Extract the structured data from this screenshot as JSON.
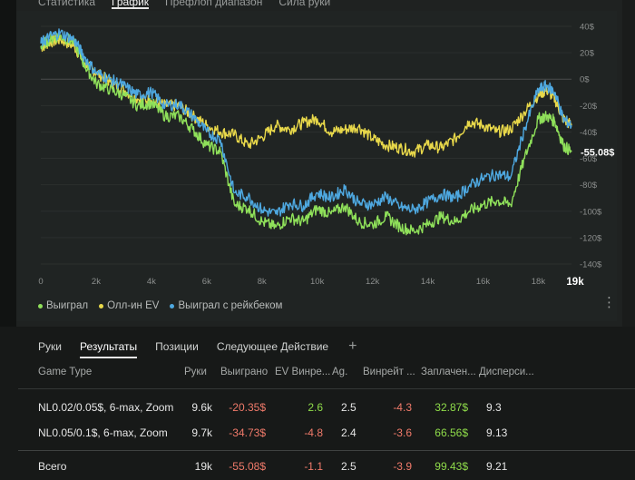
{
  "top_tabs": [
    {
      "label": "Статистика",
      "active": false
    },
    {
      "label": "График",
      "active": true
    },
    {
      "label": "Префлоп диапазон",
      "active": false
    },
    {
      "label": "Сила руки",
      "active": false
    }
  ],
  "chart_data": {
    "type": "line",
    "x_ticks": [
      "0",
      "2k",
      "4k",
      "6k",
      "8k",
      "10k",
      "12k",
      "14k",
      "16k",
      "18k"
    ],
    "x_max_label": "19k",
    "y_ticks": [
      "40$",
      "20$",
      "0$",
      "-20$",
      "-40$",
      "-60$",
      "-80$",
      "-100$",
      "-120$",
      "-140$"
    ],
    "ylim": [
      -140,
      40
    ],
    "xlim": [
      0,
      19200
    ],
    "current_value_label": "-55.08$",
    "series": [
      {
        "name": "Выиграл",
        "color": "#8fe05a",
        "x": [
          0,
          300,
          700,
          1200,
          1600,
          2000,
          2500,
          3000,
          3500,
          4000,
          4500,
          5000,
          5500,
          6000,
          6500,
          7000,
          7500,
          8000,
          8500,
          9000,
          9500,
          10000,
          10500,
          11000,
          11500,
          12000,
          12500,
          13000,
          13500,
          14000,
          14500,
          15000,
          15500,
          16000,
          16500,
          17000,
          17500,
          18000,
          18300,
          18600,
          18900,
          19200
        ],
        "y": [
          25,
          30,
          33,
          28,
          10,
          -3,
          -8,
          -12,
          -20,
          -18,
          -28,
          -28,
          -38,
          -50,
          -55,
          -95,
          -98,
          -108,
          -112,
          -105,
          -108,
          -98,
          -102,
          -96,
          -108,
          -110,
          -104,
          -112,
          -115,
          -110,
          -104,
          -108,
          -100,
          -95,
          -92,
          -95,
          -60,
          -30,
          -28,
          -32,
          -50,
          -55.08
        ]
      },
      {
        "name": "Олл-ин EV",
        "color": "#e8d84a",
        "x": [
          0,
          300,
          700,
          1200,
          1600,
          2000,
          2500,
          3000,
          3500,
          4000,
          4500,
          5000,
          5500,
          6000,
          6500,
          7000,
          7500,
          8000,
          8500,
          9000,
          9500,
          10000,
          10500,
          11000,
          11500,
          12000,
          12500,
          13000,
          13500,
          14000,
          14500,
          15000,
          15500,
          16000,
          16500,
          17000,
          17500,
          18000,
          18300,
          18600,
          18900,
          19200
        ],
        "y": [
          24,
          28,
          30,
          25,
          12,
          5,
          -2,
          -8,
          -15,
          -16,
          -20,
          -20,
          -28,
          -35,
          -40,
          -42,
          -50,
          -44,
          -35,
          -38,
          -33,
          -30,
          -40,
          -38,
          -36,
          -45,
          -50,
          -52,
          -55,
          -50,
          -52,
          -45,
          -32,
          -35,
          -40,
          -38,
          -25,
          -12,
          -8,
          -15,
          -30,
          -35
        ]
      },
      {
        "name": "Выиграл с рейкбеком",
        "color": "#4ea8e0",
        "x": [
          0,
          300,
          700,
          1200,
          1600,
          2000,
          2500,
          3000,
          3500,
          4000,
          4500,
          5000,
          5500,
          6000,
          6500,
          7000,
          7500,
          8000,
          8500,
          9000,
          9500,
          10000,
          10500,
          11000,
          11500,
          12000,
          12500,
          13000,
          13500,
          14000,
          14500,
          15000,
          15500,
          16000,
          16500,
          17000,
          17500,
          18000,
          18300,
          18600,
          18900,
          19200
        ],
        "y": [
          27,
          32,
          35,
          30,
          16,
          5,
          0,
          -5,
          -12,
          -10,
          -20,
          -19,
          -28,
          -40,
          -46,
          -86,
          -89,
          -99,
          -102,
          -94,
          -96,
          -86,
          -90,
          -83,
          -94,
          -95,
          -89,
          -97,
          -99,
          -93,
          -87,
          -90,
          -81,
          -75,
          -72,
          -74,
          -38,
          -8,
          -5,
          -10,
          -30,
          -35
        ]
      }
    ]
  },
  "legend": [
    {
      "label": "Выиграл",
      "color": "#8fe05a"
    },
    {
      "label": "Олл-ин EV",
      "color": "#e8d84a"
    },
    {
      "label": "Выиграл с рейкбеком",
      "color": "#4ea8e0"
    }
  ],
  "sub_tabs": [
    {
      "label": "Руки",
      "active": false
    },
    {
      "label": "Результаты",
      "active": true
    },
    {
      "label": "Позиции",
      "active": false
    },
    {
      "label": "Следующее Действие",
      "active": false
    }
  ],
  "add_tab_label": "+",
  "kebab_label": "⋮",
  "table": {
    "headers": [
      "Game Type",
      "Руки",
      "Выиграно",
      "EV Винре...",
      "Ag.",
      "Винрейт ...",
      "Заплачен...",
      "Дисперси..."
    ],
    "rows": [
      [
        "NL0.02/0.05$, 6-max, Zoom",
        "9.6k",
        "-20.35$",
        "2.6",
        "2.5",
        "-4.3",
        "32.87$",
        "9.3"
      ],
      [
        "NL0.05/0.1$, 6-max, Zoom",
        "9.7k",
        "-34.73$",
        "-4.8",
        "2.4",
        "-3.6",
        "66.56$",
        "9.13"
      ]
    ],
    "total": [
      "Всего",
      "19k",
      "-55.08$",
      "-1.1",
      "2.5",
      "-3.9",
      "99.43$",
      "9.21"
    ]
  }
}
